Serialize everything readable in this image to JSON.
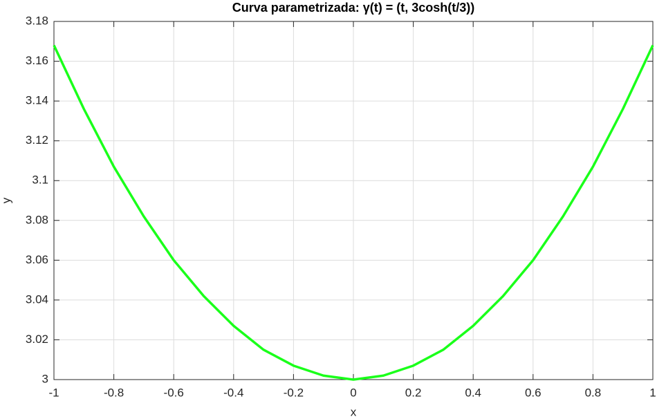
{
  "chart_data": {
    "type": "line",
    "title": "Curva  parametrizada:  γ(t)  =  (t,  3cosh(t/3))",
    "xlabel": "x",
    "ylabel": "y",
    "x": [
      -1,
      -0.9,
      -0.8,
      -0.7,
      -0.6,
      -0.5,
      -0.4,
      -0.3,
      -0.2,
      -0.1,
      0,
      0.1,
      0.2,
      0.3,
      0.4,
      0.5,
      0.6,
      0.7,
      0.8,
      0.9,
      1
    ],
    "series": [
      {
        "name": "3cosh(t/3)",
        "color": "#1aff1a",
        "values": [
          3.168,
          3.136,
          3.107,
          3.082,
          3.06,
          3.042,
          3.027,
          3.015,
          3.007,
          3.002,
          3.0,
          3.002,
          3.007,
          3.015,
          3.027,
          3.042,
          3.06,
          3.082,
          3.107,
          3.136,
          3.168
        ]
      }
    ],
    "xlim": [
      -1,
      1
    ],
    "ylim": [
      3,
      3.18
    ],
    "xticks": [
      -1,
      -0.8,
      -0.6,
      -0.4,
      -0.2,
      0,
      0.2,
      0.4,
      0.6,
      0.8,
      1
    ],
    "yticks": [
      3,
      3.02,
      3.04,
      3.06,
      3.08,
      3.1,
      3.12,
      3.14,
      3.16,
      3.18
    ],
    "grid": true
  }
}
